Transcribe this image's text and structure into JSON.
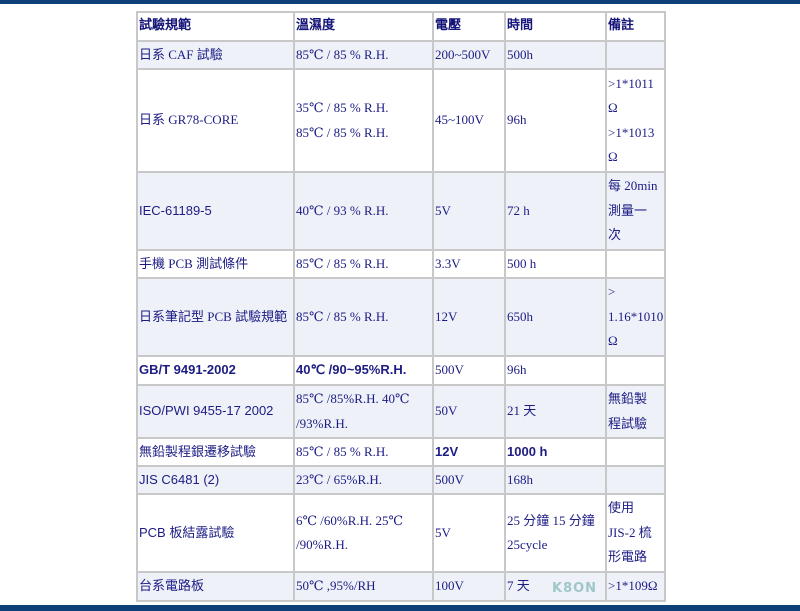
{
  "headers": [
    "試驗規範",
    "溫濕度",
    "電壓",
    "時間",
    "備註"
  ],
  "rows": [
    {
      "cells": [
        [
          "日系  CAF 試驗"
        ],
        [
          "85℃ / 85 % R.H."
        ],
        [
          "200~500V"
        ],
        [
          "500h"
        ],
        []
      ]
    },
    {
      "cells": [
        [
          "日系  GR78-CORE"
        ],
        [
          "35℃ / 85 % R.H.",
          "85℃ / 85 % R.H."
        ],
        [
          "45~100V"
        ],
        [
          "96h"
        ],
        [
          ">1*1011",
          "Ω",
          ">1*1013",
          "Ω"
        ]
      ]
    },
    {
      "cells": [
        [
          "IEC-61189-5"
        ],
        [
          "40℃ / 93 % R.H."
        ],
        [
          "5V"
        ],
        [
          "72 h"
        ],
        [
          "每 20min",
          "測量一",
          "次"
        ]
      ]
    },
    {
      "cells": [
        [
          "手機 PCB 測試條件"
        ],
        [
          "85℃ / 85 % R.H."
        ],
        [
          "3.3V"
        ],
        [
          "500 h"
        ],
        []
      ]
    },
    {
      "cells": [
        [
          "日系筆記型 PCB 試驗規範"
        ],
        [
          "85℃ / 85 % R.H."
        ],
        [
          "12V"
        ],
        [
          "650h"
        ],
        [
          ">",
          "1.16*1010",
          "Ω"
        ]
      ]
    },
    {
      "cells": [
        [
          "GB/T 9491-2002"
        ],
        [
          "40℃ /90~95%R.H."
        ],
        [
          "500V"
        ],
        [
          "96h"
        ],
        []
      ]
    },
    {
      "cells": [
        [
          "ISO/PWI 9455-17 2002"
        ],
        [
          "85℃ /85%R.H. 40℃",
          "/93%R.H."
        ],
        [
          "50V"
        ],
        [
          "21 天"
        ],
        [
          "無鉛製",
          "程試驗"
        ]
      ]
    },
    {
      "cells": [
        [
          "無鉛製程銀遷移試驗"
        ],
        [
          "85℃ / 85 % R.H."
        ],
        [
          "12V"
        ],
        [
          "1000 h"
        ],
        []
      ]
    },
    {
      "cells": [
        [
          "JIS C6481 (2)"
        ],
        [
          "23℃ / 65%R.H."
        ],
        [
          "500V"
        ],
        [
          "168h"
        ],
        []
      ]
    },
    {
      "cells": [
        [
          "PCB 板結露試驗"
        ],
        [
          "6℃ /60%R.H. 25℃",
          "/90%R.H."
        ],
        [
          "5V"
        ],
        [
          "25 分鐘  15 分鐘",
          "25cycle"
        ],
        [
          "使用",
          "JIS-2 梳",
          "形電路"
        ]
      ]
    },
    {
      "cells": [
        [
          "台系電路板"
        ],
        [
          "50℃ ,95%/RH"
        ],
        [
          "100V"
        ],
        [
          "7 天"
        ],
        [
          ">1*109Ω"
        ]
      ]
    }
  ],
  "watermark": "K8ON"
}
